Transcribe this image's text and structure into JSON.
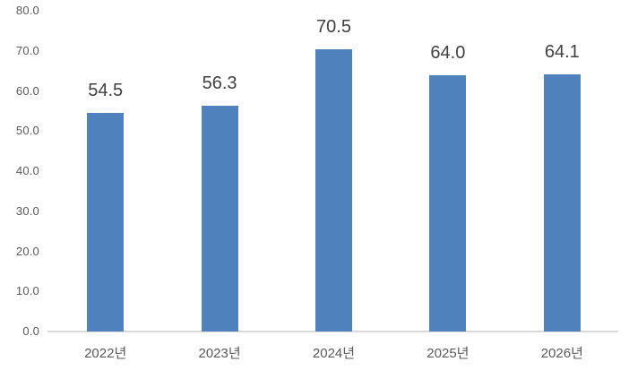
{
  "chart_data": {
    "type": "bar",
    "title": "",
    "xlabel": "",
    "ylabel": "",
    "categories": [
      "2022년",
      "2023년",
      "2024년",
      "2025년",
      "2026년"
    ],
    "values": [
      54.5,
      56.3,
      70.5,
      64.0,
      64.1
    ],
    "data_labels": [
      "54.5",
      "56.3",
      "70.5",
      "64.0",
      "64.1"
    ],
    "y_ticks": [
      "0.0",
      "10.0",
      "20.0",
      "30.0",
      "40.0",
      "50.0",
      "60.0",
      "70.0",
      "80.0"
    ],
    "ylim": [
      0,
      80
    ],
    "grid": false,
    "legend_position": "none",
    "colors": {
      "bar": "#4F81BD",
      "data_label": "#404040",
      "axis_tick_label": "#595959",
      "axis_line": "#D9D9D9",
      "background": "#FFFFFF"
    }
  }
}
